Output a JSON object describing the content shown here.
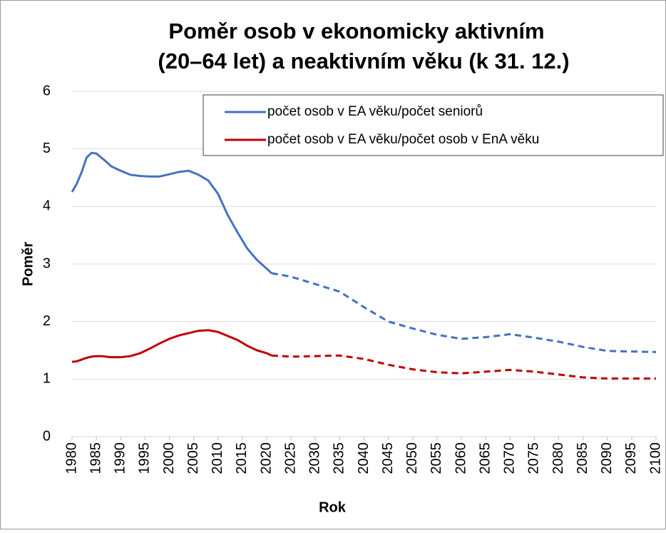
{
  "chart_data": {
    "type": "line",
    "title": [
      "Poměr osob v ekonomicky aktivním",
      "(20–64 let)  a neaktivním věku (k 31. 12.)"
    ],
    "xlabel": "Rok",
    "ylabel": "Poměr",
    "x": [
      1980,
      1981,
      1982,
      1983,
      1984,
      1985,
      1986,
      1987,
      1988,
      1990,
      1992,
      1994,
      1996,
      1998,
      2000,
      2002,
      2004,
      2006,
      2008,
      2010,
      2012,
      2014,
      2016,
      2018,
      2020,
      2021,
      2025,
      2030,
      2035,
      2040,
      2045,
      2050,
      2055,
      2060,
      2065,
      2070,
      2075,
      2080,
      2085,
      2090,
      2095,
      2100
    ],
    "series": [
      {
        "name": "počet osob v EA věku/počet seniorů",
        "color": "#4472c4",
        "values": [
          4.25,
          4.4,
          4.6,
          4.85,
          4.93,
          4.92,
          4.85,
          4.78,
          4.7,
          4.62,
          4.55,
          4.53,
          4.52,
          4.52,
          4.56,
          4.6,
          4.62,
          4.55,
          4.45,
          4.22,
          3.85,
          3.55,
          3.27,
          3.07,
          2.92,
          2.84,
          2.78,
          2.65,
          2.52,
          2.25,
          2.0,
          1.88,
          1.77,
          1.7,
          1.73,
          1.78,
          1.72,
          1.65,
          1.56,
          1.49,
          1.48,
          1.47
        ]
      },
      {
        "name": "počet osob v EA věku/počet osob v EnA věku",
        "color": "#c00000",
        "values": [
          1.3,
          1.31,
          1.34,
          1.37,
          1.39,
          1.4,
          1.4,
          1.39,
          1.38,
          1.38,
          1.4,
          1.45,
          1.53,
          1.62,
          1.7,
          1.76,
          1.8,
          1.84,
          1.85,
          1.82,
          1.75,
          1.68,
          1.58,
          1.5,
          1.45,
          1.41,
          1.39,
          1.4,
          1.41,
          1.35,
          1.25,
          1.17,
          1.12,
          1.1,
          1.13,
          1.16,
          1.13,
          1.08,
          1.03,
          1.01,
          1.01,
          1.01
        ]
      }
    ],
    "dashed_from": 2021,
    "xlim": [
      1980,
      2100
    ],
    "xticks": [
      1980,
      1985,
      1990,
      1995,
      2000,
      2005,
      2010,
      2015,
      2020,
      2025,
      2030,
      2035,
      2040,
      2045,
      2050,
      2055,
      2060,
      2065,
      2070,
      2075,
      2080,
      2085,
      2090,
      2095,
      2100
    ],
    "ylim": [
      0,
      6
    ],
    "yticks": [
      0,
      1,
      2,
      3,
      4,
      5,
      6
    ],
    "grid": true,
    "legend": "upper right"
  }
}
